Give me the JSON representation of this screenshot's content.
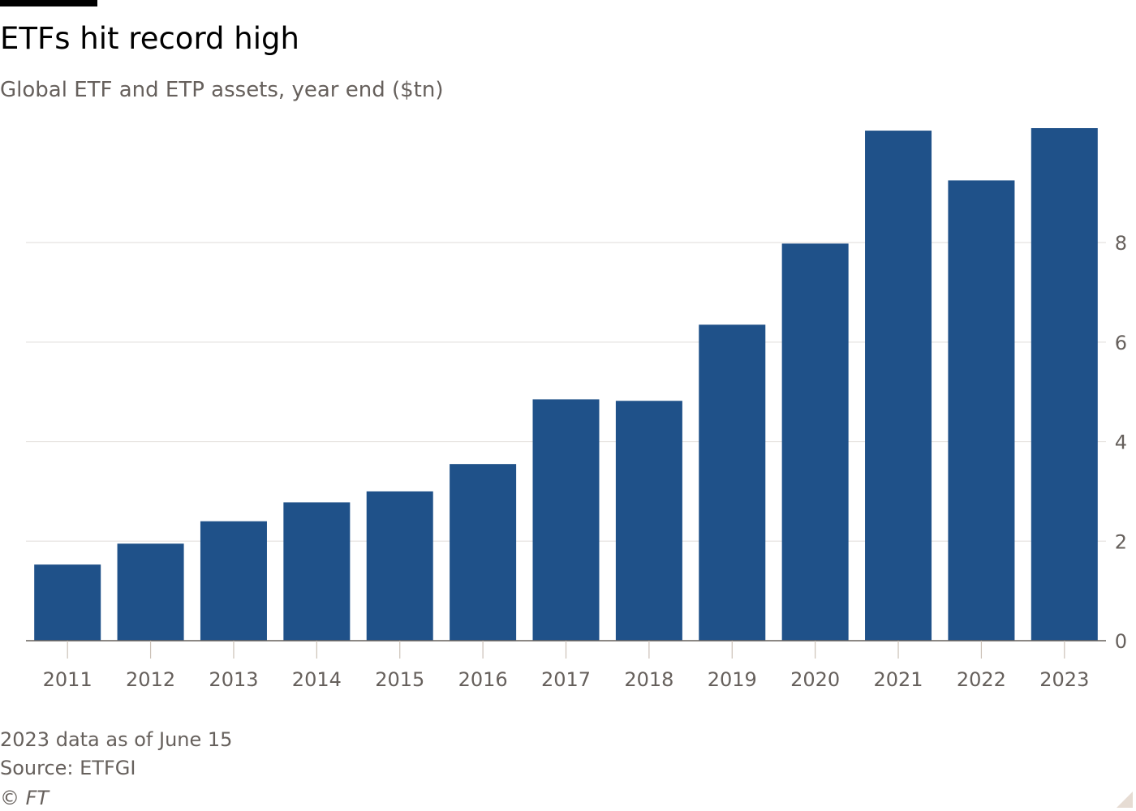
{
  "header": {
    "title": "ETFs hit record high",
    "subtitle": "Global ETF and ETP assets, year end ($tn)"
  },
  "chart_data": {
    "type": "bar",
    "title": "ETFs hit record high",
    "subtitle": "Global ETF and ETP assets, year end ($tn)",
    "categories": [
      "2011",
      "2012",
      "2013",
      "2014",
      "2015",
      "2016",
      "2017",
      "2018",
      "2019",
      "2020",
      "2021",
      "2022",
      "2023"
    ],
    "values": [
      1.53,
      1.95,
      2.4,
      2.78,
      3.0,
      3.55,
      4.85,
      4.82,
      6.35,
      7.98,
      10.25,
      9.25,
      10.3
    ],
    "xlabel": "",
    "ylabel": "",
    "ylim": [
      0,
      10.3
    ],
    "yticks": [
      0,
      2,
      4,
      6,
      8
    ],
    "y_axis_side": "right",
    "grid": true,
    "bar_color": "#1f5189",
    "grid_color": "#e6e3e0"
  },
  "footer": {
    "note": "2023 data as of June 15",
    "source": "Source: ETFGI",
    "copyright": "© FT"
  }
}
